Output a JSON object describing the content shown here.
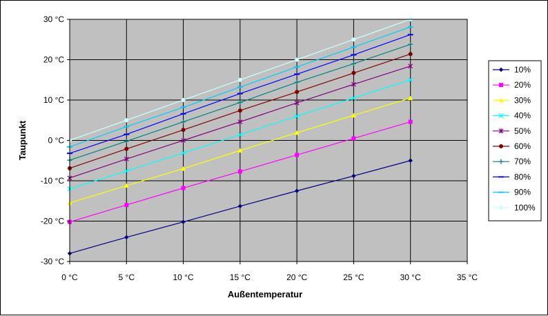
{
  "chart_data": {
    "type": "line",
    "title": "",
    "xlabel": "Außentemperatur",
    "ylabel": "Taupunkt",
    "x": [
      0,
      5,
      10,
      15,
      20,
      25,
      30
    ],
    "xlim": [
      0,
      35
    ],
    "ylim": [
      -30,
      30
    ],
    "x_ticks": [
      {
        "value": 0,
        "label": "0 °C"
      },
      {
        "value": 5,
        "label": "5 °C"
      },
      {
        "value": 10,
        "label": "10 °C"
      },
      {
        "value": 15,
        "label": "15 °C"
      },
      {
        "value": 20,
        "label": "20 °C"
      },
      {
        "value": 25,
        "label": "25 °C"
      },
      {
        "value": 30,
        "label": "30 °C"
      },
      {
        "value": 35,
        "label": "35 °C"
      }
    ],
    "y_ticks": [
      {
        "value": 30,
        "label": "30 °C"
      },
      {
        "value": 20,
        "label": "20 °C"
      },
      {
        "value": 10,
        "label": "10 °C"
      },
      {
        "value": 0,
        "label": "0 °C"
      },
      {
        "value": -10,
        "label": "-10 °C"
      },
      {
        "value": -20,
        "label": "-20 °C"
      },
      {
        "value": -30,
        "label": "-30 °C"
      }
    ],
    "grid": true,
    "plot_background": "#c0c0c0",
    "legend_position": "right",
    "series": [
      {
        "name": "10%",
        "color": "#000080",
        "marker": "diamond",
        "values": [
          -28.0,
          -24.0,
          -20.2,
          -16.3,
          -12.5,
          -8.8,
          -5.0
        ]
      },
      {
        "name": "20%",
        "color": "#ff00ff",
        "marker": "square",
        "values": [
          -20.2,
          -16.0,
          -11.8,
          -7.7,
          -3.6,
          0.5,
          4.6
        ]
      },
      {
        "name": "30%",
        "color": "#ffff00",
        "marker": "triangle",
        "values": [
          -15.5,
          -11.2,
          -7.0,
          -2.5,
          1.9,
          6.2,
          10.5
        ]
      },
      {
        "name": "40%",
        "color": "#00ffff",
        "marker": "x",
        "values": [
          -12.0,
          -7.6,
          -3.1,
          1.4,
          6.0,
          10.5,
          15.0
        ]
      },
      {
        "name": "50%",
        "color": "#800080",
        "marker": "star",
        "values": [
          -9.3,
          -4.6,
          0.0,
          4.6,
          9.3,
          13.9,
          18.4
        ]
      },
      {
        "name": "60%",
        "color": "#800000",
        "marker": "circle",
        "values": [
          -6.9,
          -2.1,
          2.6,
          7.4,
          12.0,
          16.7,
          21.4
        ]
      },
      {
        "name": "70%",
        "color": "#008080",
        "marker": "plus",
        "values": [
          -4.9,
          -0.2,
          4.6,
          9.4,
          14.4,
          19.0,
          23.8
        ]
      },
      {
        "name": "80%",
        "color": "#0000ff",
        "marker": "dash",
        "values": [
          -3.2,
          1.5,
          6.6,
          11.6,
          16.4,
          21.2,
          26.2
        ]
      },
      {
        "name": "90%",
        "color": "#00ccff",
        "marker": "dash",
        "values": [
          -1.6,
          3.4,
          8.2,
          13.2,
          18.2,
          23.1,
          28.1
        ]
      },
      {
        "name": "100%",
        "color": "#ccffff",
        "marker": "circle",
        "values": [
          0.0,
          5.0,
          10.0,
          15.0,
          20.0,
          25.0,
          30.0
        ]
      }
    ]
  }
}
